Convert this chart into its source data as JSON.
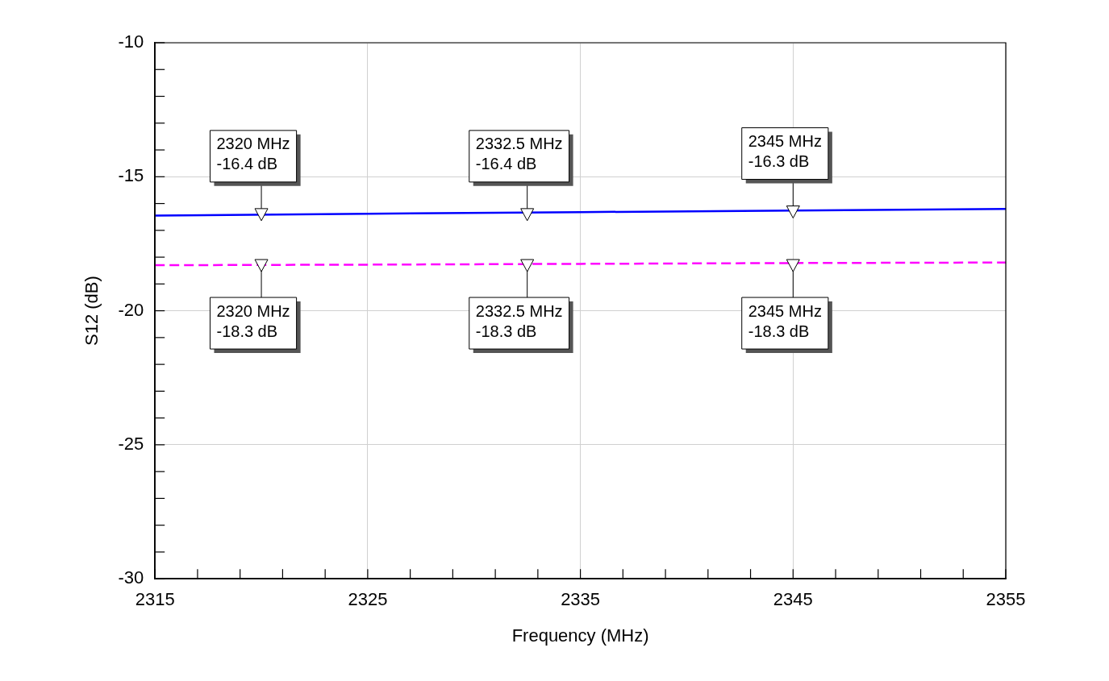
{
  "chart_data": {
    "type": "line",
    "xlabel": "Frequency (MHz)",
    "ylabel": "S12 (dB)",
    "xlim": [
      2315,
      2355
    ],
    "ylim": [
      -30,
      -10
    ],
    "xticks": [
      2315,
      {
        "value": 2317,
        "label": null
      },
      {
        "value": 2319,
        "label": null
      },
      {
        "value": 2321,
        "label": null
      },
      {
        "value": 2323,
        "label": null
      },
      2325,
      {
        "value": 2327,
        "label": null
      },
      {
        "value": 2329,
        "label": null
      },
      {
        "value": 2331,
        "label": null
      },
      {
        "value": 2333,
        "label": null
      },
      2335,
      {
        "value": 2337,
        "label": null
      },
      {
        "value": 2339,
        "label": null
      },
      {
        "value": 2341,
        "label": null
      },
      {
        "value": 2343,
        "label": null
      },
      2345,
      {
        "value": 2347,
        "label": null
      },
      {
        "value": 2349,
        "label": null
      },
      {
        "value": 2351,
        "label": null
      },
      {
        "value": 2353,
        "label": null
      },
      2355
    ],
    "yticks": [
      -30,
      {
        "value": -29,
        "label": null
      },
      {
        "value": -28,
        "label": null
      },
      {
        "value": -27,
        "label": null
      },
      {
        "value": -26,
        "label": null
      },
      -25,
      {
        "value": -24,
        "label": null
      },
      {
        "value": -23,
        "label": null
      },
      {
        "value": -22,
        "label": null
      },
      {
        "value": -21,
        "label": null
      },
      -20,
      {
        "value": -19,
        "label": null
      },
      {
        "value": -18,
        "label": null
      },
      {
        "value": -17,
        "label": null
      },
      {
        "value": -16,
        "label": null
      },
      -15,
      {
        "value": -14,
        "label": null
      },
      {
        "value": -13,
        "label": null
      },
      {
        "value": -12,
        "label": null
      },
      {
        "value": -11,
        "label": null
      },
      -10
    ],
    "grid": true,
    "legend": false,
    "marker": "none",
    "series": [
      {
        "color": "#0000ff",
        "line_style": "solid",
        "x": [
          2315,
          2325,
          2335,
          2345,
          2355
        ],
        "values": [
          -16.45,
          -16.38,
          -16.32,
          -16.26,
          -16.2
        ]
      },
      {
        "color": "#ff00ff",
        "line_style": "dashed",
        "x": [
          2315,
          2325,
          2335,
          2345,
          2355
        ],
        "values": [
          -18.3,
          -18.28,
          -18.25,
          -18.22,
          -18.2
        ]
      }
    ],
    "annotations": [
      {
        "text": "2320 MHz\n-16.4 dB",
        "x": 2320,
        "y": -16.4
      },
      {
        "text": "2332.5 MHz\n-16.4 dB",
        "x": 2332.5,
        "y": -16.4
      },
      {
        "text": "2345 MHz\n-16.3 dB",
        "x": 2345,
        "y": -16.3
      },
      {
        "text": "2320 MHz\n-18.3 dB",
        "x": 2320,
        "y": -18.3
      },
      {
        "text": "2332.5 MHz\n-18.3 dB",
        "x": 2332.5,
        "y": -18.3
      },
      {
        "text": "2345 MHz\n-18.3 dB",
        "x": 2345,
        "y": -18.3
      }
    ]
  }
}
